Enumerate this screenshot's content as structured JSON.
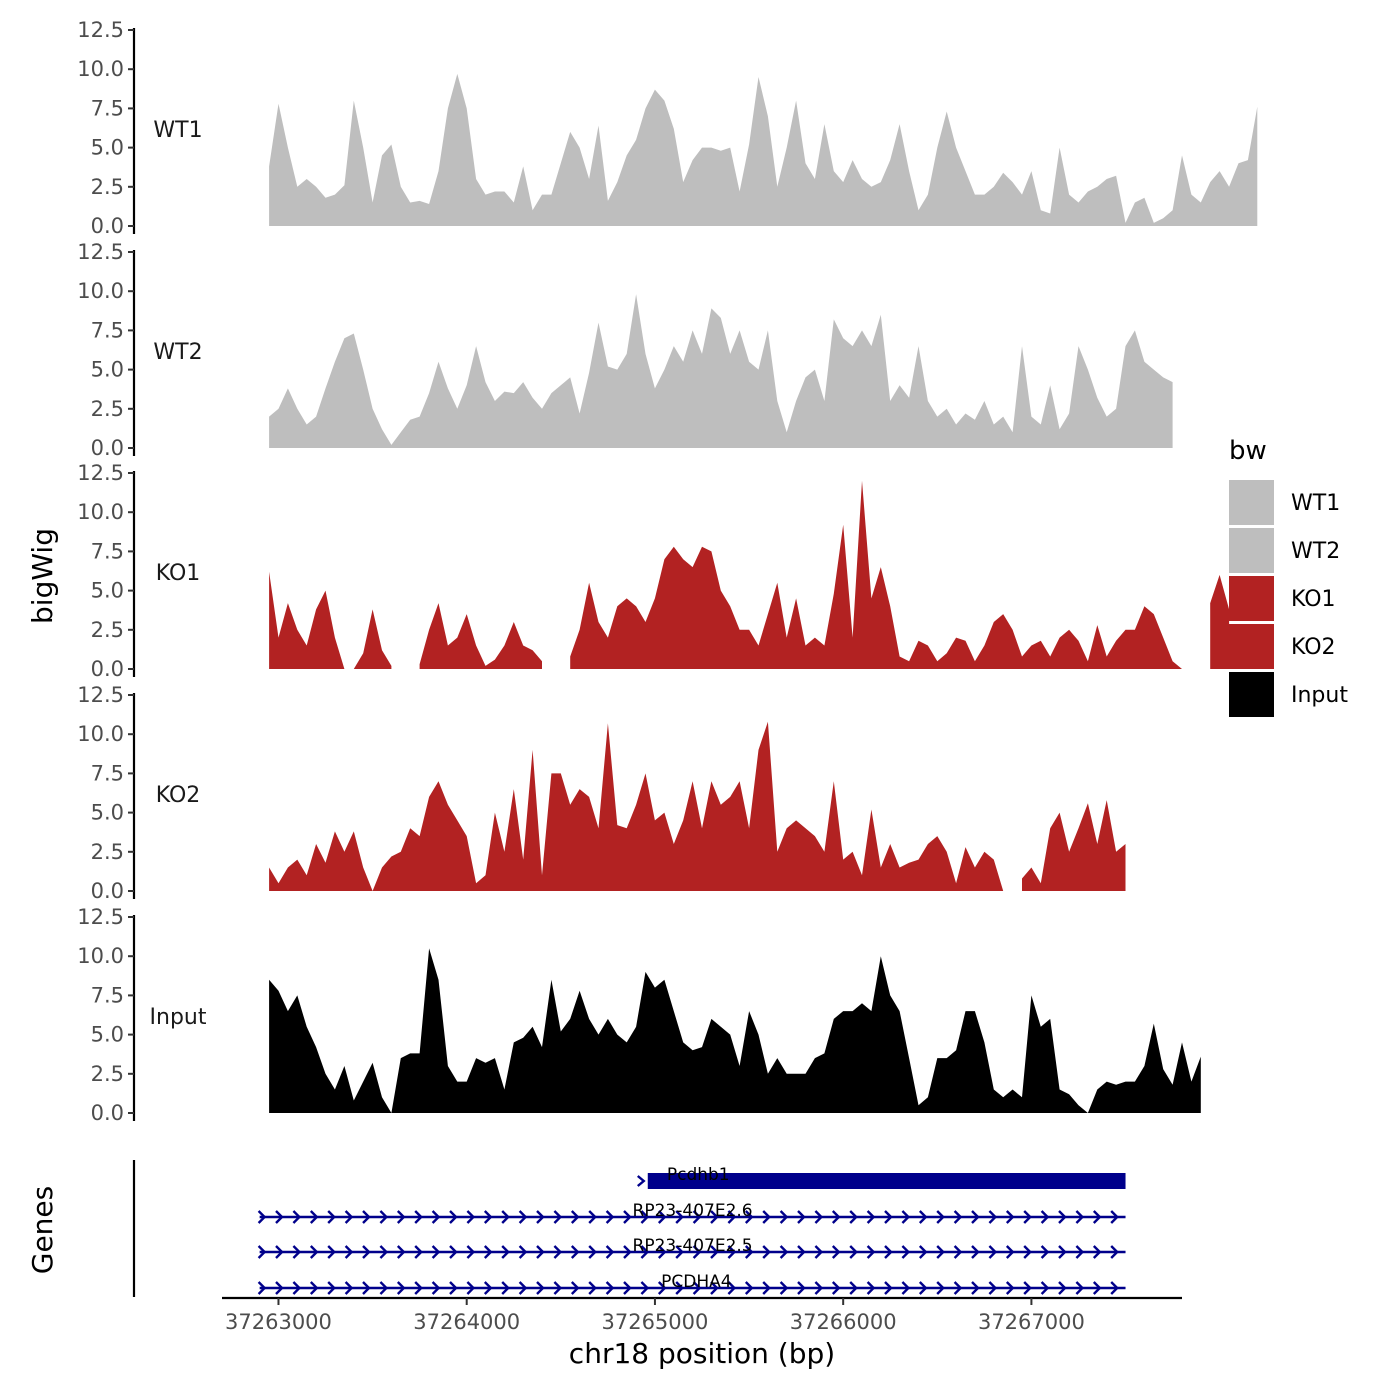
{
  "chart_data": {
    "type": "area",
    "ylabel": "bigWig",
    "xlabel": "chr18 position (bp)",
    "genes_label": "Genes",
    "x_range": [
      37262700,
      37267800
    ],
    "x_ticks": [
      37263000,
      37264000,
      37265000,
      37266000,
      37267000
    ],
    "x_tick_labels": [
      "37263000",
      "37264000",
      "37265000",
      "37266000",
      "37267000"
    ],
    "ylim": [
      0,
      12.5
    ],
    "y_ticks": [
      0,
      2.5,
      5,
      7.5,
      10,
      12.5
    ],
    "y_tick_labels": [
      "0.0",
      "2.5",
      "5.0",
      "7.5",
      "10.0",
      "12.5"
    ],
    "legend": {
      "title": "bw",
      "entries": [
        {
          "label": "WT1",
          "color": "#bebebe"
        },
        {
          "label": "WT2",
          "color": "#bebebe"
        },
        {
          "label": "KO1",
          "color": "#b22222"
        },
        {
          "label": "KO2",
          "color": "#b22222"
        },
        {
          "label": "Input",
          "color": "#000000"
        }
      ]
    },
    "series": [
      {
        "name": "WT1",
        "color": "#bebebe",
        "x_start": 37262950,
        "step": 50,
        "values": [
          3.8,
          7.8,
          5.0,
          2.5,
          3.0,
          2.5,
          1.8,
          2.0,
          2.6,
          8.0,
          5.0,
          1.5,
          4.5,
          5.2,
          2.5,
          1.5,
          1.6,
          1.4,
          3.5,
          7.5,
          9.7,
          7.5,
          3.0,
          2.0,
          2.2,
          2.2,
          1.5,
          3.8,
          1.0,
          2.0,
          2.0,
          4.0,
          6.0,
          5.0,
          3.0,
          6.4,
          1.6,
          2.8,
          4.5,
          5.5,
          7.5,
          8.7,
          8.0,
          6.2,
          2.8,
          4.2,
          5.0,
          5.0,
          4.8,
          5.0,
          2.2,
          5.2,
          9.5,
          7.0,
          2.5,
          5.0,
          8.0,
          4.0,
          3.0,
          6.5,
          3.5,
          2.8,
          4.2,
          3.0,
          2.5,
          2.8,
          4.2,
          6.5,
          3.5,
          1.0,
          2.0,
          5.0,
          7.3,
          5.0,
          3.5,
          2.0,
          2.0,
          2.5,
          3.4,
          2.8,
          2.0,
          3.5,
          1.0,
          0.8,
          5.0,
          2.0,
          1.5,
          2.2,
          2.5,
          3.0,
          3.2,
          0.2,
          1.5,
          1.8,
          0.2,
          0.5,
          1.0,
          4.5,
          2.0,
          1.5,
          2.8,
          3.5,
          2.5,
          4.0,
          4.2,
          7.6
        ]
      },
      {
        "name": "WT2",
        "color": "#bebebe",
        "x_start": 37262950,
        "step": 50,
        "values": [
          2.0,
          2.5,
          3.8,
          2.5,
          1.5,
          2.0,
          3.8,
          5.5,
          7.0,
          7.3,
          5.0,
          2.5,
          1.2,
          0.2,
          1.0,
          1.8,
          2.0,
          3.5,
          5.5,
          3.8,
          2.5,
          4.0,
          6.5,
          4.2,
          3.0,
          3.6,
          3.5,
          4.2,
          3.2,
          2.5,
          3.5,
          4.0,
          4.5,
          2.2,
          4.8,
          8.0,
          5.2,
          5.0,
          6.0,
          9.8,
          6.0,
          3.8,
          5.0,
          6.5,
          5.5,
          7.5,
          6.0,
          8.9,
          8.3,
          6.0,
          7.5,
          5.5,
          5.0,
          7.5,
          3.0,
          1.0,
          3.0,
          4.5,
          5.0,
          3.0,
          8.2,
          7.0,
          6.5,
          7.5,
          6.5,
          8.5,
          3.0,
          4.0,
          3.2,
          6.5,
          3.0,
          2.0,
          2.5,
          1.5,
          2.2,
          1.8,
          3.0,
          1.5,
          2.0,
          1.0,
          6.5,
          2.0,
          1.5,
          4.0,
          1.2,
          2.2,
          6.5,
          5.0,
          3.2,
          2.0,
          2.5,
          6.5,
          7.5,
          5.5,
          5.0,
          4.5,
          4.2
        ]
      },
      {
        "name": "KO1",
        "color": "#b22222",
        "x_start": 37262950,
        "step": 50,
        "values": [
          6.2,
          2.0,
          4.2,
          2.5,
          1.5,
          3.8,
          5.0,
          2.0,
          0.0,
          0.0,
          1.0,
          3.8,
          1.2,
          0.2,
          null,
          null,
          0.3,
          2.5,
          4.2,
          1.5,
          2.0,
          3.5,
          1.5,
          0.2,
          0.6,
          1.5,
          3.0,
          1.5,
          1.2,
          0.5,
          null,
          null,
          0.8,
          2.5,
          5.5,
          3.0,
          2.0,
          4.0,
          4.5,
          4.0,
          3.0,
          4.5,
          7.0,
          7.8,
          7.0,
          6.5,
          7.8,
          7.5,
          5.0,
          4.0,
          2.5,
          2.5,
          1.5,
          3.5,
          5.5,
          2.0,
          4.5,
          1.5,
          2.0,
          1.5,
          4.8,
          9.2,
          2.0,
          12.0,
          4.5,
          6.5,
          4.0,
          0.8,
          0.5,
          1.8,
          1.5,
          0.5,
          1.0,
          2.0,
          1.8,
          0.5,
          1.5,
          3.0,
          3.5,
          2.5,
          0.8,
          1.5,
          1.8,
          0.8,
          2.0,
          2.5,
          1.8,
          0.5,
          2.8,
          0.8,
          1.8,
          2.5,
          2.5,
          4.0,
          3.5,
          2.0,
          0.5,
          0.0,
          null,
          null,
          4.2,
          6.0,
          3.8
        ]
      },
      {
        "name": "KO2",
        "color": "#b22222",
        "x_start": 37262950,
        "step": 50,
        "values": [
          1.5,
          0.5,
          1.5,
          2.0,
          1.0,
          3.0,
          1.8,
          3.8,
          2.5,
          3.8,
          1.5,
          0.0,
          1.5,
          2.2,
          2.5,
          4.0,
          3.5,
          6.0,
          7.0,
          5.5,
          4.5,
          3.5,
          0.5,
          1.0,
          5.0,
          2.5,
          6.5,
          2.0,
          9.0,
          1.0,
          7.5,
          7.5,
          5.5,
          6.5,
          6.0,
          4.0,
          10.7,
          4.2,
          4.0,
          5.5,
          7.5,
          4.5,
          5.0,
          3.0,
          4.5,
          7.0,
          4.0,
          7.0,
          5.5,
          6.0,
          7.0,
          4.0,
          9.0,
          10.8,
          2.5,
          4.0,
          4.5,
          4.0,
          3.5,
          2.5,
          7.0,
          2.0,
          2.5,
          1.0,
          5.2,
          1.5,
          3.0,
          1.5,
          1.8,
          2.0,
          3.0,
          3.5,
          2.5,
          0.5,
          2.8,
          1.5,
          2.5,
          2.0,
          0.0,
          null,
          0.8,
          1.5,
          0.5,
          4.0,
          5.0,
          2.5,
          4.0,
          5.6,
          3.0,
          5.8,
          2.5,
          3.0
        ]
      },
      {
        "name": "Input",
        "color": "#000000",
        "x_start": 37262950,
        "step": 50,
        "values": [
          8.5,
          7.8,
          6.5,
          7.5,
          5.5,
          4.2,
          2.5,
          1.5,
          3.0,
          0.8,
          2.0,
          3.2,
          1.0,
          0.0,
          3.5,
          3.8,
          3.8,
          10.5,
          8.5,
          3.0,
          2.0,
          2.0,
          3.5,
          3.2,
          3.5,
          1.5,
          4.5,
          4.8,
          5.5,
          4.2,
          8.5,
          5.2,
          6.0,
          7.8,
          6.0,
          5.0,
          6.0,
          5.0,
          4.5,
          5.5,
          9.0,
          8.0,
          8.5,
          6.5,
          4.5,
          4.0,
          4.2,
          6.0,
          5.5,
          5.0,
          3.0,
          6.5,
          5.0,
          2.5,
          3.5,
          2.5,
          2.5,
          2.5,
          3.5,
          3.8,
          6.0,
          6.5,
          6.5,
          7.0,
          6.5,
          10.0,
          7.5,
          6.5,
          3.5,
          0.5,
          1.0,
          3.5,
          3.5,
          4.0,
          6.5,
          6.5,
          4.5,
          1.5,
          1.0,
          1.5,
          1.0,
          7.5,
          5.5,
          6.0,
          1.5,
          1.2,
          0.5,
          0.0,
          1.5,
          2.0,
          1.8,
          2.0,
          2.0,
          3.0,
          5.7,
          2.8,
          1.8,
          4.5,
          2.0,
          3.6
        ]
      }
    ],
    "genes": [
      {
        "name": "Pcdhb1",
        "start": 37264930,
        "end": 37267500,
        "strand": "+",
        "style": "thick"
      },
      {
        "name": "RP23-407E2.6",
        "start": 37262900,
        "end": 37267500,
        "strand": "+",
        "style": "arrows"
      },
      {
        "name": "RP23-407E2.5",
        "start": 37262900,
        "end": 37267500,
        "strand": "+",
        "style": "arrows"
      },
      {
        "name": "PCDHA4",
        "start": 37262900,
        "end": 37267500,
        "strand": "+",
        "style": "arrows"
      }
    ],
    "gene_color": "#00008b"
  }
}
